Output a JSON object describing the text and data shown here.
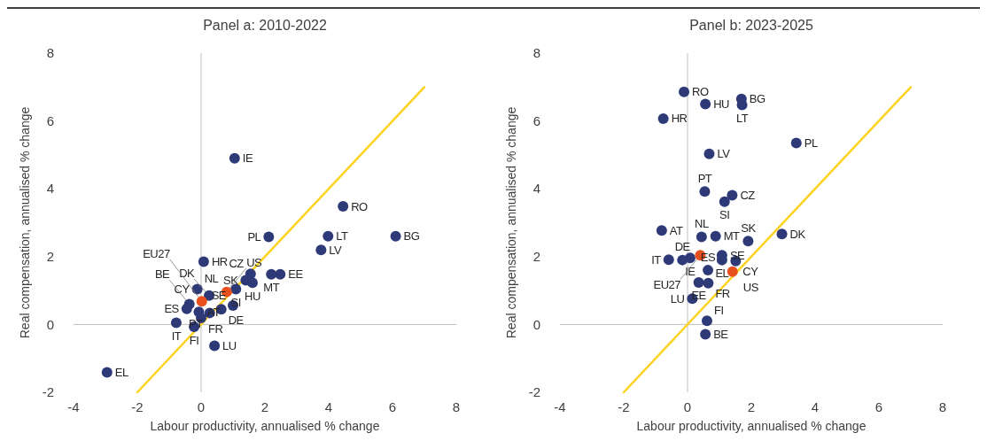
{
  "chart_data": [
    {
      "type": "scatter",
      "title": "Panel a: 2010-2022",
      "xlabel": "Labour productivity, annualised % change",
      "ylabel": "Real compensation, annualised % change",
      "xlim": [
        -4,
        8
      ],
      "ylim": [
        -2,
        8
      ],
      "xticks": [
        -4,
        -2,
        0,
        2,
        4,
        6,
        8
      ],
      "yticks": [
        -2,
        0,
        2,
        4,
        6,
        8
      ],
      "series": [
        {
          "marker": "circle",
          "color": "#2e3a78",
          "x": [
            1.05,
            4.45,
            6.1,
            3.98,
            3.76,
            2.12,
            0.08,
            2.48,
            2.2,
            1.55,
            1.61,
            1.4,
            1.09,
            null,
            -0.12,
            0.25,
            -0.78,
            -0.22,
            0.42,
            0.0,
            0.27,
            0.63,
            1.0,
            -0.07,
            -0.45,
            -0.37,
            -2.95
          ],
          "values": [
            4.9,
            3.48,
            2.6,
            2.6,
            2.2,
            2.58,
            1.85,
            1.48,
            1.48,
            1.49,
            1.23,
            1.3,
            1.04,
            null,
            1.04,
            0.85,
            0.05,
            -0.07,
            -0.63,
            0.19,
            0.34,
            0.45,
            0.56,
            0.37,
            0.46,
            0.6,
            -1.41
          ]
        },
        {
          "marker": "circle",
          "color": "#e8501e",
          "x": [
            0.02,
            0.8
          ],
          "values": [
            0.68,
            0.96
          ]
        },
        {
          "type": "line",
          "color": "#ffd21f",
          "x": [
            -2,
            7
          ],
          "values": [
            -2,
            7
          ]
        }
      ],
      "annotations": [
        {
          "text": "IE",
          "x": 1.05,
          "y": 4.9
        },
        {
          "text": "RO",
          "x": 4.45,
          "y": 3.48
        },
        {
          "text": "BG",
          "x": 6.1,
          "y": 2.6
        },
        {
          "text": "LT",
          "x": 3.98,
          "y": 2.6
        },
        {
          "text": "LV",
          "x": 3.76,
          "y": 2.2
        },
        {
          "text": "PL",
          "x": 2.12,
          "y": 2.58
        },
        {
          "text": "HR",
          "x": 0.08,
          "y": 1.85
        },
        {
          "text": "EE",
          "x": 2.48,
          "y": 1.48
        },
        {
          "text": "MT",
          "x": 2.2,
          "y": 1.48
        },
        {
          "text": "CZ",
          "x": 1.55,
          "y": 1.49
        },
        {
          "text": "HU",
          "x": 1.61,
          "y": 1.23
        },
        {
          "text": "SK",
          "x": 1.4,
          "y": 1.3
        },
        {
          "text": "SI",
          "x": 1.09,
          "y": 1.04
        },
        {
          "text": "CY",
          "x": -0.12,
          "y": 1.04
        },
        {
          "text": "NL",
          "x": -0.12,
          "y": 1.04
        },
        {
          "text": "DK",
          "x": 0.25,
          "y": 0.85
        },
        {
          "text": "IT",
          "x": -0.78,
          "y": 0.05
        },
        {
          "text": "FI",
          "x": -0.22,
          "y": -0.07
        },
        {
          "text": "LU",
          "x": 0.42,
          "y": -0.63
        },
        {
          "text": "FR",
          "x": 0.0,
          "y": 0.19
        },
        {
          "text": "PT",
          "x": 0.27,
          "y": 0.34
        },
        {
          "text": "DE",
          "x": 0.63,
          "y": 0.45
        },
        {
          "text": "SE",
          "x": 1.0,
          "y": 0.56
        },
        {
          "text": "AT",
          "x": -0.07,
          "y": 0.37
        },
        {
          "text": "ES",
          "x": -0.45,
          "y": 0.46
        },
        {
          "text": "BE",
          "x": -0.37,
          "y": 0.6
        },
        {
          "text": "EL",
          "x": -2.95,
          "y": -1.41
        },
        {
          "text": "EU27",
          "x": 0.02,
          "y": 0.68
        },
        {
          "text": "US",
          "x": 0.8,
          "y": 0.96
        }
      ]
    },
    {
      "type": "scatter",
      "title": "Panel b: 2023-2025",
      "xlabel": "Labour productivity, annualised % change",
      "ylabel": "Real compensation, annualised % change",
      "xlim": [
        -4,
        8
      ],
      "ylim": [
        -2,
        8
      ],
      "xticks": [
        -4,
        -2,
        0,
        2,
        4,
        6,
        8
      ],
      "yticks": [
        -2,
        0,
        2,
        4,
        6,
        8
      ],
      "series": [
        {
          "marker": "circle",
          "color": "#2e3a78",
          "x": [
            -0.11,
            0.56,
            -0.76,
            1.69,
            1.71,
            3.41,
            0.68,
            0.54,
            1.4,
            1.16,
            -0.81,
            0.44,
            0.88,
            1.9,
            2.96,
            1.08,
            1.08,
            1.51,
            -0.59,
            -0.16,
            0.08,
            0.64,
            0.35,
            0.65,
            0.15,
            0.61,
            0.56
          ],
          "values": [
            6.86,
            6.5,
            6.07,
            6.65,
            6.47,
            5.35,
            5.03,
            3.92,
            3.81,
            3.62,
            2.77,
            2.58,
            2.6,
            2.46,
            2.67,
            2.04,
            1.9,
            1.87,
            1.91,
            1.9,
            1.96,
            1.6,
            1.24,
            1.22,
            0.76,
            0.11,
            -0.29
          ]
        },
        {
          "marker": "circle",
          "color": "#e8501e",
          "x": [
            0.4,
            1.41
          ],
          "values": [
            2.04,
            1.56
          ]
        },
        {
          "type": "line",
          "color": "#ffd21f",
          "x": [
            -2,
            7
          ],
          "values": [
            -2,
            7
          ]
        }
      ],
      "annotations": [
        {
          "text": "RO",
          "x": -0.11,
          "y": 6.86
        },
        {
          "text": "HU",
          "x": 0.56,
          "y": 6.5
        },
        {
          "text": "HR",
          "x": -0.76,
          "y": 6.07
        },
        {
          "text": "BG",
          "x": 1.69,
          "y": 6.65
        },
        {
          "text": "LT",
          "x": 1.71,
          "y": 6.47
        },
        {
          "text": "PL",
          "x": 3.41,
          "y": 5.35
        },
        {
          "text": "LV",
          "x": 0.68,
          "y": 5.03
        },
        {
          "text": "PT",
          "x": 0.54,
          "y": 3.92
        },
        {
          "text": "CZ",
          "x": 1.4,
          "y": 3.81
        },
        {
          "text": "SI",
          "x": 1.16,
          "y": 3.62
        },
        {
          "text": "AT",
          "x": -0.81,
          "y": 2.77
        },
        {
          "text": "NL",
          "x": 0.44,
          "y": 2.58
        },
        {
          "text": "MT",
          "x": 0.88,
          "y": 2.6
        },
        {
          "text": "SK",
          "x": 1.9,
          "y": 2.46
        },
        {
          "text": "DK",
          "x": 2.96,
          "y": 2.67
        },
        {
          "text": "SE",
          "x": 1.08,
          "y": 2.04
        },
        {
          "text": "EL",
          "x": 1.08,
          "y": 1.9
        },
        {
          "text": "CY",
          "x": 1.51,
          "y": 1.87
        },
        {
          "text": "IT",
          "x": -0.59,
          "y": 1.91
        },
        {
          "text": "DE",
          "x": -0.16,
          "y": 1.9
        },
        {
          "text": "IE",
          "x": 0.08,
          "y": 1.96
        },
        {
          "text": "ES",
          "x": 0.64,
          "y": 1.6
        },
        {
          "text": "EE",
          "x": 0.35,
          "y": 1.24
        },
        {
          "text": "FR",
          "x": 0.65,
          "y": 1.22
        },
        {
          "text": "LU",
          "x": 0.15,
          "y": 0.76
        },
        {
          "text": "FI",
          "x": 0.61,
          "y": 0.11
        },
        {
          "text": "BE",
          "x": 0.56,
          "y": -0.29
        },
        {
          "text": "EU27",
          "x": 0.4,
          "y": 2.04
        },
        {
          "text": "US",
          "x": 1.41,
          "y": 1.56
        }
      ]
    }
  ]
}
